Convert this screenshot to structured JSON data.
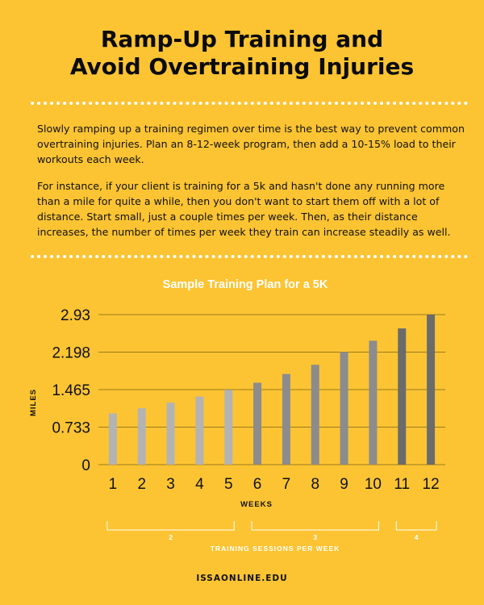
{
  "header": {
    "title_line1": "Ramp-Up Training and",
    "title_line2": "Avoid Overtraining Injuries"
  },
  "body": {
    "paragraph1": "Slowly ramping up a training regimen over time is the best way to prevent common overtraining injuries. Plan an 8-12-week program, then add a 10-15% load to their workouts each week.",
    "paragraph2": "For instance, if your client is training for a 5k and hasn't done any running more than a mile for quite a while, then you don't want to start them off with a lot of distance. Start small, just a couple times per week. Then, as their distance increases, the number of times per week they train can increase steadily as well."
  },
  "footer": {
    "site": "ISSAONLINE.EDU"
  },
  "colors": {
    "background": "#fcc433",
    "gridline": "#9c7a1e",
    "bar_light": "#b3b3b3",
    "bar_mid": "#8c8c8c",
    "bar_dark": "#6b6b6b",
    "bracket": "#ffffff"
  },
  "chart_data": {
    "type": "bar",
    "title": "Sample Training Plan for a 5K",
    "xlabel": "WEEKS",
    "ylabel": "MILES",
    "categories": [
      "1",
      "2",
      "3",
      "4",
      "5",
      "6",
      "7",
      "8",
      "9",
      "10",
      "11",
      "12"
    ],
    "values": [
      1.0,
      1.1,
      1.21,
      1.33,
      1.46,
      1.6,
      1.77,
      1.95,
      2.2,
      2.42,
      2.66,
      2.93
    ],
    "ylim": [
      0,
      2.93
    ],
    "yticks": [
      "0",
      "0.733",
      "1.465",
      "2.198",
      "2.93"
    ],
    "ytick_values": [
      0,
      0.733,
      1.465,
      2.198,
      2.93
    ],
    "grid": true,
    "sessions_label": "TRAINING SESSIONS PER WEEK",
    "sessions": [
      {
        "sessions": "2",
        "start_week": 1,
        "end_week": 5,
        "shade": "light"
      },
      {
        "sessions": "3",
        "start_week": 6,
        "end_week": 10,
        "shade": "mid"
      },
      {
        "sessions": "4",
        "start_week": 11,
        "end_week": 12,
        "shade": "dark"
      }
    ]
  }
}
